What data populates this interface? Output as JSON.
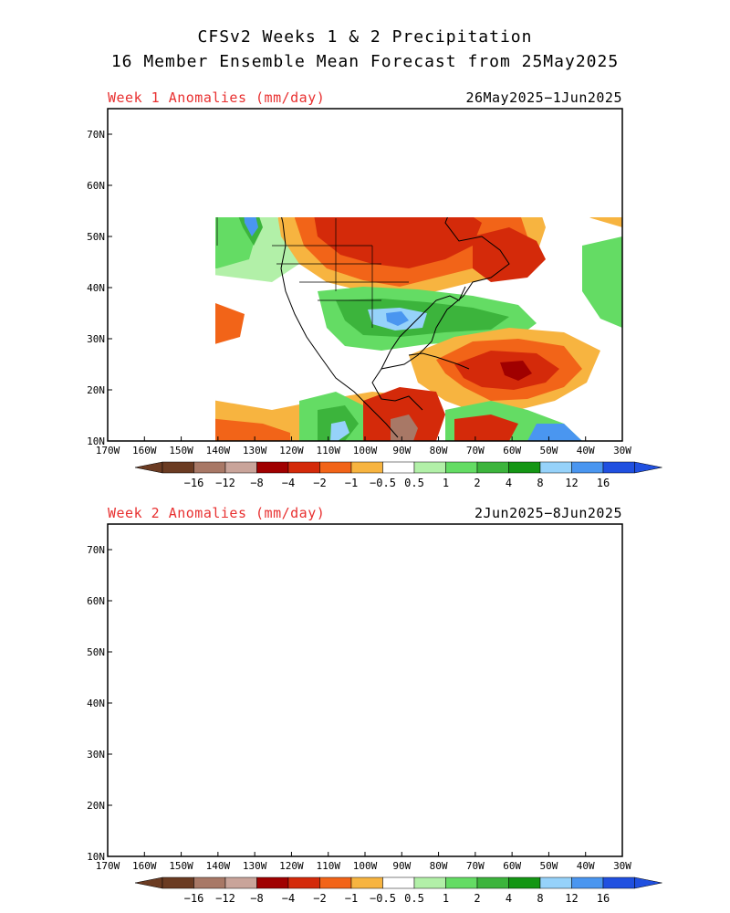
{
  "title": {
    "line1": "CFSv2 Weeks 1 & 2 Precipitation",
    "line2": "16 Member Ensemble Mean Forecast from 25May2025"
  },
  "panels": [
    {
      "label": "Week 1 Anomalies (mm/day)",
      "dates": "26May2025−1Jun2025"
    },
    {
      "label": "Week 2 Anomalies (mm/day)",
      "dates": "2Jun2025−8Jun2025"
    }
  ],
  "axes": {
    "lat_labels": [
      "70N",
      "60N",
      "50N",
      "40N",
      "30N",
      "20N",
      "10N"
    ],
    "lon_labels": [
      "170W",
      "160W",
      "150W",
      "140W",
      "130W",
      "120W",
      "110W",
      "100W",
      "90W",
      "80W",
      "70W",
      "60W",
      "50W",
      "40W",
      "30W"
    ]
  },
  "colorbar": {
    "labels": [
      "−16",
      "−12",
      "−8",
      "−4",
      "−2",
      "−1",
      "−0.5",
      "0.5",
      "1",
      "2",
      "4",
      "8",
      "12",
      "16"
    ],
    "colors": [
      "#6b3b22",
      "#a87866",
      "#c9a49a",
      "#a00000",
      "#d42a0a",
      "#f26418",
      "#f7b440",
      "#ffffff",
      "#b2f0a8",
      "#64dc64",
      "#3cb43c",
      "#149614",
      "#96d2fa",
      "#4a96f0",
      "#2050e0"
    ]
  }
}
